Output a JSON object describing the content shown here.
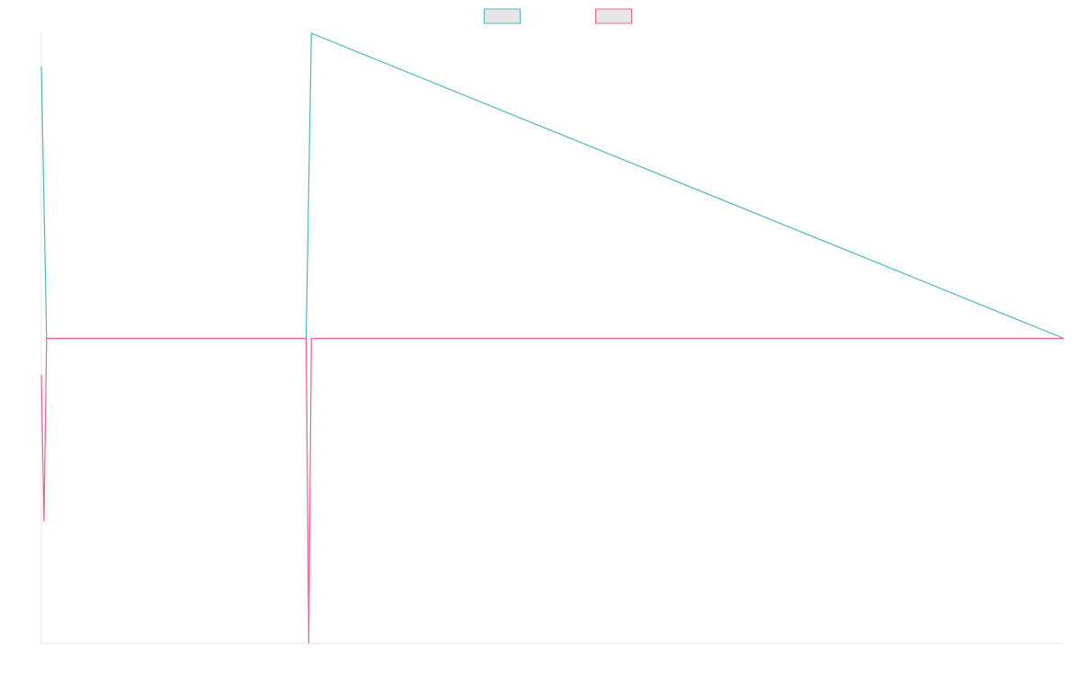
{
  "chart_data": {
    "type": "line",
    "title": "",
    "xlabel": "",
    "ylabel": "",
    "grid": false,
    "legend": {
      "placement": "top-center",
      "entries": [
        {
          "label": "",
          "border_color": "#4bb8c0",
          "fill_color": "#e6e6e6"
        },
        {
          "label": "",
          "border_color": "#f06088",
          "fill_color": "#e6e6e6"
        }
      ]
    },
    "xlim": [
      0,
      390
    ],
    "ylim": [
      -1.0,
      1.0
    ],
    "series": [
      {
        "color": "#4bb8c0",
        "x": [
          0,
          2,
          101,
          103,
          390
        ],
        "y": [
          0.89,
          0.0,
          0.0,
          1.0,
          0.0
        ]
      },
      {
        "color": "#f06088",
        "x": [
          0,
          1,
          2,
          101,
          102,
          103,
          390
        ],
        "y": [
          -0.12,
          -0.6,
          0.0,
          0.0,
          -1.0,
          0.0,
          0.0
        ]
      }
    ]
  }
}
